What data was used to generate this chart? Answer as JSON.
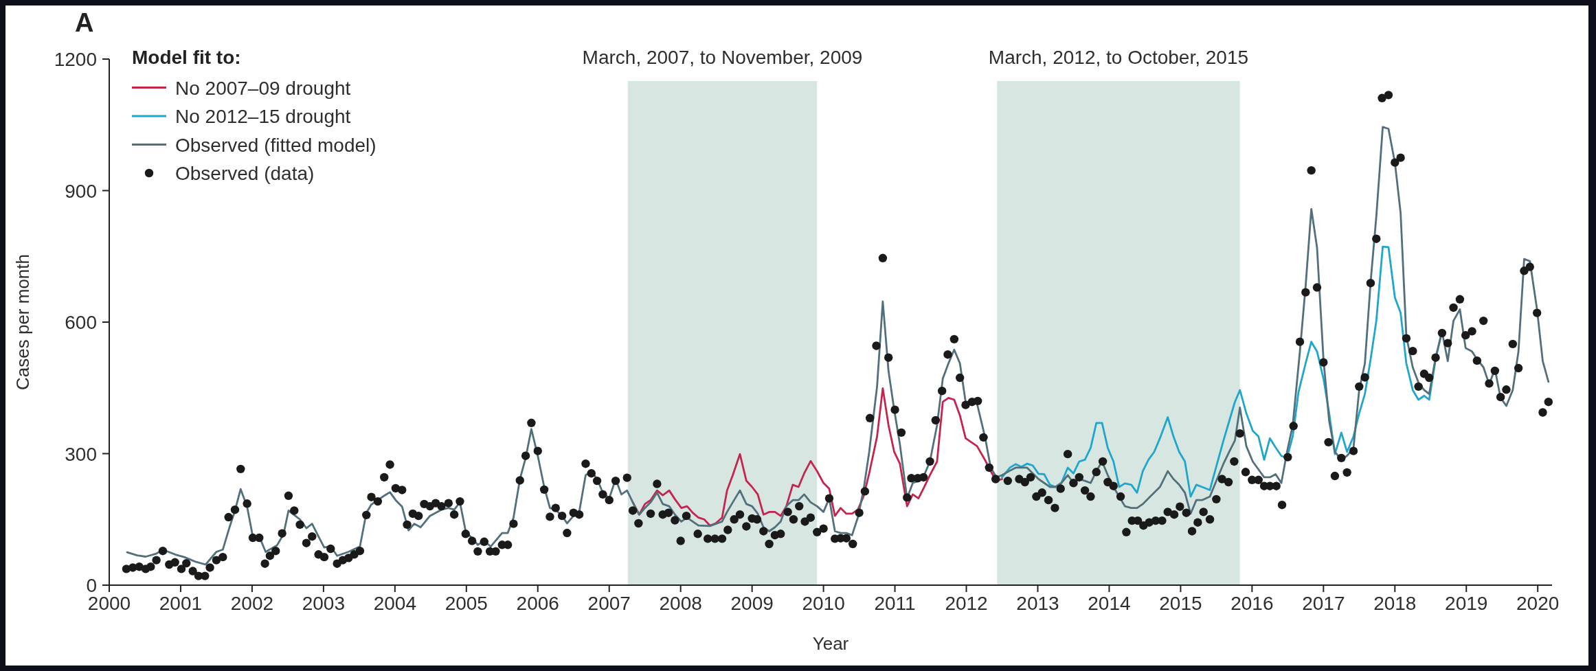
{
  "chart_data": {
    "type": "line",
    "title": "A",
    "xlabel": "Year",
    "ylabel": "Cases per month",
    "legend_title": "Model fit to:",
    "legend": "top left",
    "xlim": [
      2000,
      2020.2
    ],
    "ylim": [
      0,
      1200
    ],
    "xticks": [
      2000,
      2001,
      2002,
      2003,
      2004,
      2005,
      2006,
      2007,
      2008,
      2009,
      2010,
      2011,
      2012,
      2013,
      2014,
      2015,
      2016,
      2017,
      2018,
      2019,
      2020
    ],
    "yticks": [
      0,
      300,
      600,
      900,
      1200
    ],
    "bands": [
      {
        "axis": "x",
        "from": 2007.26,
        "to": 2009.91,
        "label": "March, 2007, to November, 2009",
        "color": "#d7e6e0"
      },
      {
        "axis": "x",
        "from": 2012.43,
        "to": 2015.83,
        "label": "March, 2012, to October, 2015",
        "color": "#d7e6e0"
      }
    ],
    "series": [
      {
        "name": "No 2007–09 drought",
        "type": "line",
        "color": "#c4244e",
        "x": [
          2007.33,
          2007.42,
          2007.5,
          2007.58,
          2007.67,
          2007.75,
          2007.84,
          2007.92,
          2008.01,
          2008.09,
          2008.17,
          2008.25,
          2008.33,
          2008.41,
          2008.49,
          2008.58,
          2008.65,
          2008.73,
          2008.83,
          2008.92,
          2009.0,
          2009.08,
          2009.16,
          2009.24,
          2009.32,
          2009.4,
          2009.48,
          2009.57,
          2009.65,
          2009.73,
          2009.82,
          2009.91,
          2010.0,
          2010.08,
          2010.16,
          2010.24,
          2010.32,
          2010.4,
          2010.48,
          2010.56,
          2010.64,
          2010.75,
          2010.83,
          2010.91,
          2010.99,
          2011.07,
          2011.17,
          2011.25,
          2011.33,
          2011.41,
          2011.49,
          2011.59,
          2011.67,
          2011.75,
          2011.83,
          2011.91,
          2011.99,
          2012.07,
          2012.15,
          2012.26,
          2012.34,
          2012.42,
          2012.5
        ],
        "values": [
          189,
          161,
          185,
          194,
          216,
          205,
          216,
          196,
          176,
          180,
          165,
          154,
          150,
          136,
          141,
          154,
          216,
          251,
          299,
          238,
          224,
          207,
          161,
          167,
          167,
          158,
          180,
          229,
          224,
          255,
          283,
          260,
          233,
          220,
          158,
          176,
          163,
          163,
          172,
          202,
          255,
          339,
          449,
          365,
          304,
          277,
          180,
          207,
          198,
          224,
          251,
          282,
          418,
          427,
          423,
          387,
          335,
          326,
          317,
          286,
          260,
          238,
          242
        ]
      },
      {
        "name": "No 2012–15 drought",
        "type": "line",
        "color": "#1fa6cc",
        "x": [
          2012.5,
          2012.61,
          2012.69,
          2012.77,
          2012.85,
          2012.93,
          2013.01,
          2013.09,
          2013.17,
          2013.25,
          2013.33,
          2013.42,
          2013.5,
          2013.58,
          2013.66,
          2013.74,
          2013.82,
          2013.9,
          2013.98,
          2014.06,
          2014.14,
          2014.22,
          2014.31,
          2014.39,
          2014.47,
          2014.55,
          2014.63,
          2014.71,
          2014.82,
          2014.9,
          2014.98,
          2015.06,
          2015.14,
          2015.22,
          2015.3,
          2015.41,
          2015.51,
          2015.6,
          2015.68,
          2015.76,
          2015.83,
          2015.92,
          2016.01,
          2016.09,
          2016.17,
          2016.25,
          2016.33,
          2016.41,
          2016.49,
          2016.57,
          2016.65,
          2016.75,
          2016.83,
          2016.91,
          2017.0,
          2017.08,
          2017.16,
          2017.25,
          2017.33,
          2017.42,
          2017.5,
          2017.58,
          2017.66,
          2017.74,
          2017.83,
          2017.91,
          2018.0,
          2018.08,
          2018.16,
          2018.25,
          2018.33,
          2018.41,
          2018.48,
          2018.57,
          2018.66
        ],
        "values": [
          246,
          268,
          276,
          270,
          277,
          273,
          254,
          253,
          229,
          224,
          233,
          268,
          255,
          282,
          286,
          313,
          370,
          370,
          313,
          282,
          224,
          232,
          229,
          211,
          260,
          286,
          304,
          335,
          383,
          339,
          304,
          282,
          202,
          229,
          224,
          217,
          277,
          330,
          374,
          418,
          445,
          392,
          352,
          339,
          286,
          335,
          314,
          295,
          290,
          340,
          440,
          506,
          555,
          533,
          471,
          392,
          299,
          348,
          304,
          339,
          392,
          436,
          515,
          603,
          772,
          771,
          656,
          621,
          506,
          445,
          423,
          432,
          423,
          515,
          581
        ]
      },
      {
        "name": "Observed (fitted model)",
        "type": "line",
        "color": "#52707c",
        "x": [
          2000.25,
          2000.39,
          2000.51,
          2000.66,
          2000.75,
          2000.92,
          2001.05,
          2001.2,
          2001.35,
          2001.5,
          2001.59,
          2001.68,
          2001.76,
          2001.84,
          2001.93,
          2002.01,
          2002.1,
          2002.19,
          2002.35,
          2002.44,
          2002.51,
          2002.59,
          2002.67,
          2002.76,
          2002.84,
          2002.93,
          2003.01,
          2003.1,
          2003.19,
          2003.35,
          2003.51,
          2003.6,
          2003.67,
          2003.76,
          2003.85,
          2003.93,
          2004.01,
          2004.1,
          2004.19,
          2004.27,
          2004.36,
          2004.49,
          2004.65,
          2004.75,
          2004.83,
          2004.91,
          2004.99,
          2005.16,
          2005.25,
          2005.34,
          2005.5,
          2005.58,
          2005.66,
          2005.75,
          2005.83,
          2005.91,
          2006.0,
          2006.09,
          2006.17,
          2006.25,
          2006.34,
          2006.41,
          2006.5,
          2006.58,
          2006.67,
          2006.75,
          2006.83,
          2006.91,
          2007.0,
          2007.09,
          2007.17,
          2007.25,
          2007.33,
          2007.42,
          2007.5,
          2007.58,
          2007.67,
          2007.75,
          2007.84,
          2007.92,
          2008.01,
          2008.09,
          2008.25,
          2008.41,
          2008.58,
          2008.65,
          2008.73,
          2008.83,
          2008.92,
          2009.0,
          2009.08,
          2009.16,
          2009.24,
          2009.32,
          2009.4,
          2009.48,
          2009.57,
          2009.65,
          2009.73,
          2009.82,
          2009.91,
          2010.0,
          2010.08,
          2010.16,
          2010.24,
          2010.32,
          2010.4,
          2010.48,
          2010.56,
          2010.64,
          2010.75,
          2010.83,
          2010.91,
          2010.99,
          2011.07,
          2011.17,
          2011.25,
          2011.33,
          2011.41,
          2011.49,
          2011.59,
          2011.67,
          2011.75,
          2011.83,
          2011.91,
          2011.99,
          2012.07,
          2012.15,
          2012.26,
          2012.34,
          2012.42,
          2012.5,
          2012.61,
          2012.69,
          2012.77,
          2012.85,
          2012.93,
          2013.01,
          2013.09,
          2013.17,
          2013.25,
          2013.33,
          2013.42,
          2013.5,
          2013.58,
          2013.66,
          2013.74,
          2013.82,
          2013.9,
          2013.98,
          2014.06,
          2014.14,
          2014.22,
          2014.31,
          2014.39,
          2014.47,
          2014.55,
          2014.63,
          2014.71,
          2014.82,
          2014.9,
          2014.98,
          2015.06,
          2015.14,
          2015.22,
          2015.3,
          2015.41,
          2015.51,
          2015.6,
          2015.68,
          2015.76,
          2015.83,
          2015.92,
          2016.01,
          2016.09,
          2016.17,
          2016.25,
          2016.33,
          2016.41,
          2016.49,
          2016.57,
          2016.67,
          2016.75,
          2016.83,
          2016.91,
          2017.0,
          2017.08,
          2017.16,
          2017.25,
          2017.33,
          2017.42,
          2017.5,
          2017.58,
          2017.66,
          2017.74,
          2017.83,
          2017.91,
          2018.0,
          2018.08,
          2018.16,
          2018.25,
          2018.33,
          2018.41,
          2018.48,
          2018.57,
          2018.66,
          2018.74,
          2018.82,
          2018.91,
          2018.99,
          2019.08,
          2019.15,
          2019.24,
          2019.32,
          2019.4,
          2019.48,
          2019.56,
          2019.65,
          2019.73,
          2019.81,
          2019.89,
          2019.99,
          2020.07,
          2020.15
        ],
        "values": [
          75,
          68,
          65,
          72,
          81,
          70,
          64,
          54,
          47,
          76,
          81,
          130,
          170,
          219,
          179,
          111,
          111,
          76,
          91,
          116,
          170,
          160,
          150,
          130,
          140,
          111,
          86,
          89,
          67,
          76,
          88,
          165,
          184,
          194,
          204,
          212,
          194,
          179,
          125,
          140,
          132,
          158,
          172,
          176,
          172,
          189,
          123,
          92,
          101,
          88,
          119,
          119,
          154,
          242,
          290,
          356,
          295,
          224,
          176,
          172,
          158,
          141,
          158,
          167,
          251,
          260,
          242,
          211,
          198,
          242,
          207,
          216,
          189,
          161,
          176,
          189,
          211,
          185,
          180,
          161,
          145,
          154,
          136,
          135,
          145,
          167,
          189,
          216,
          185,
          180,
          163,
          132,
          123,
          132,
          145,
          180,
          194,
          194,
          207,
          189,
          180,
          167,
          198,
          123,
          119,
          119,
          114,
          154,
          216,
          304,
          453,
          647,
          489,
          400,
          321,
          198,
          233,
          238,
          251,
          282,
          365,
          471,
          506,
          537,
          506,
          418,
          418,
          414,
          339,
          269,
          246,
          251,
          261,
          268,
          268,
          268,
          255,
          242,
          233,
          224,
          224,
          233,
          251,
          233,
          242,
          238,
          233,
          260,
          282,
          251,
          224,
          202,
          180,
          176,
          176,
          185,
          198,
          211,
          224,
          260,
          242,
          229,
          211,
          163,
          194,
          194,
          202,
          242,
          277,
          304,
          330,
          405,
          317,
          282,
          264,
          246,
          246,
          253,
          233,
          304,
          365,
          533,
          682,
          858,
          770,
          515,
          374,
          304,
          286,
          295,
          313,
          445,
          506,
          691,
          841,
          1045,
          1041,
          964,
          849,
          568,
          497,
          462,
          445,
          436,
          519,
          578,
          511,
          603,
          629,
          541,
          533,
          515,
          497,
          458,
          493,
          427,
          409,
          445,
          533,
          744,
          739,
          629,
          511,
          464
        ]
      },
      {
        "name": "Observed (data)",
        "type": "scatter",
        "color": "#1a1a1a",
        "marker": "circle",
        "x": [
          2000.24,
          2000.33,
          2000.42,
          2000.51,
          2000.58,
          2000.66,
          2000.75,
          2000.84,
          2000.92,
          2001.01,
          2001.08,
          2001.17,
          2001.25,
          2001.34,
          2001.41,
          2001.5,
          2001.59,
          2001.67,
          2001.76,
          2001.84,
          2001.93,
          2002.01,
          2002.1,
          2002.18,
          2002.25,
          2002.33,
          2002.42,
          2002.51,
          2002.59,
          2002.67,
          2002.76,
          2002.84,
          2002.93,
          2003.01,
          2003.1,
          2003.19,
          2003.27,
          2003.35,
          2003.43,
          2003.51,
          2003.6,
          2003.67,
          2003.76,
          2003.85,
          2003.93,
          2004.01,
          2004.1,
          2004.17,
          2004.25,
          2004.33,
          2004.41,
          2004.49,
          2004.57,
          2004.65,
          2004.75,
          2004.83,
          2004.91,
          2004.99,
          2005.08,
          2005.16,
          2005.25,
          2005.33,
          2005.41,
          2005.5,
          2005.58,
          2005.66,
          2005.75,
          2005.83,
          2005.91,
          2006.0,
          2006.09,
          2006.17,
          2006.25,
          2006.34,
          2006.41,
          2006.5,
          2006.58,
          2006.67,
          2006.75,
          2006.83,
          2006.91,
          2007.0,
          2007.09,
          2007.25,
          2007.33,
          2007.41,
          2007.58,
          2007.67,
          2007.75,
          2007.83,
          2007.92,
          2008.0,
          2008.08,
          2008.24,
          2008.38,
          2008.48,
          2008.58,
          2008.66,
          2008.75,
          2008.83,
          2008.92,
          2009.0,
          2009.07,
          2009.16,
          2009.24,
          2009.32,
          2009.4,
          2009.5,
          2009.58,
          2009.66,
          2009.74,
          2009.82,
          2009.91,
          2010.0,
          2010.08,
          2010.16,
          2010.24,
          2010.32,
          2010.41,
          2010.5,
          2010.58,
          2010.65,
          2010.74,
          2010.83,
          2010.91,
          2011.0,
          2011.09,
          2011.17,
          2011.23,
          2011.32,
          2011.4,
          2011.49,
          2011.57,
          2011.66,
          2011.74,
          2011.83,
          2011.91,
          2011.99,
          2012.08,
          2012.16,
          2012.24,
          2012.32,
          2012.41,
          2012.58,
          2012.74,
          2012.82,
          2012.9,
          2012.98,
          2013.06,
          2013.15,
          2013.24,
          2013.32,
          2013.42,
          2013.5,
          2013.58,
          2013.66,
          2013.74,
          2013.82,
          2013.91,
          2013.98,
          2014.06,
          2014.16,
          2014.24,
          2014.32,
          2014.4,
          2014.48,
          2014.56,
          2014.65,
          2014.74,
          2014.82,
          2014.91,
          2014.99,
          2015.08,
          2015.16,
          2015.24,
          2015.32,
          2015.41,
          2015.5,
          2015.58,
          2015.67,
          2015.75,
          2015.83,
          2015.91,
          2016.0,
          2016.09,
          2016.17,
          2016.25,
          2016.34,
          2016.42,
          2016.5,
          2016.58,
          2016.67,
          2016.75,
          2016.83,
          2016.91,
          2017.0,
          2017.07,
          2017.16,
          2017.25,
          2017.33,
          2017.42,
          2017.5,
          2017.58,
          2017.66,
          2017.74,
          2017.82,
          2017.91,
          2018.0,
          2018.08,
          2018.16,
          2018.25,
          2018.33,
          2018.41,
          2018.48,
          2018.57,
          2018.66,
          2018.74,
          2018.82,
          2018.91,
          2018.99,
          2019.08,
          2019.15,
          2019.24,
          2019.32,
          2019.4,
          2019.48,
          2019.56,
          2019.65,
          2019.73,
          2019.81,
          2019.89,
          2019.99,
          2020.07,
          2020.15
        ],
        "values": [
          37,
          40,
          42,
          37,
          42,
          57,
          78,
          47,
          52,
          37,
          50,
          32,
          21,
          21,
          40,
          57,
          64,
          155,
          172,
          265,
          186,
          108,
          108,
          49,
          67,
          78,
          118,
          204,
          170,
          138,
          96,
          111,
          70,
          64,
          83,
          49,
          57,
          62,
          70,
          78,
          160,
          201,
          191,
          246,
          275,
          221,
          217,
          138,
          163,
          158,
          185,
          180,
          187,
          180,
          187,
          161,
          191,
          117,
          101,
          77,
          99,
          77,
          77,
          92,
          92,
          140,
          239,
          295,
          370,
          306,
          218,
          156,
          176,
          158,
          119,
          165,
          161,
          277,
          255,
          238,
          207,
          194,
          238,
          245,
          170,
          141,
          163,
          231,
          161,
          165,
          148,
          101,
          158,
          117,
          106,
          106,
          106,
          126,
          150,
          161,
          134,
          152,
          150,
          123,
          94,
          114,
          117,
          167,
          150,
          180,
          145,
          154,
          121,
          129,
          198,
          106,
          107,
          107,
          94,
          165,
          214,
          381,
          546,
          746,
          519,
          400,
          348,
          200,
          244,
          244,
          246,
          282,
          376,
          443,
          526,
          561,
          473,
          411,
          418,
          420,
          337,
          268,
          242,
          238,
          242,
          235,
          246,
          202,
          211,
          194,
          176,
          220,
          299,
          233,
          246,
          216,
          202,
          258,
          282,
          235,
          226,
          202,
          121,
          147,
          147,
          136,
          143,
          147,
          147,
          167,
          161,
          179,
          165,
          123,
          143,
          167,
          150,
          196,
          242,
          235,
          282,
          346,
          258,
          240,
          240,
          226,
          226,
          226,
          183,
          292,
          363,
          555,
          668,
          946,
          679,
          508,
          326,
          249,
          290,
          257,
          306,
          453,
          474,
          689,
          790,
          1111,
          1118,
          964,
          975,
          563,
          534,
          453,
          482,
          473,
          519,
          575,
          552,
          633,
          652,
          570,
          579,
          512,
          603,
          460,
          489,
          429,
          446,
          550,
          495,
          717,
          726,
          621,
          394,
          418
        ]
      }
    ]
  }
}
